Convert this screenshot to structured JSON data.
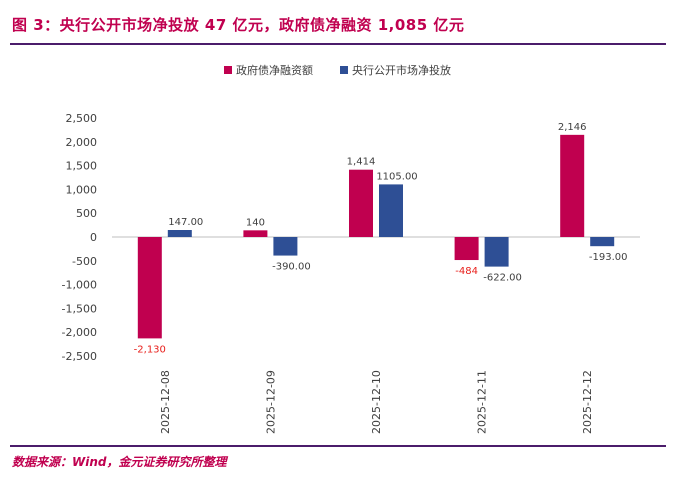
{
  "title": "图 3：央行公开市场净投放 47 亿元，政府债净融资 1,085 亿元",
  "source": "数据来源：Wind，金元证券研究所整理",
  "colors": {
    "series1": "#c0004f",
    "series2": "#2e4f95",
    "accent": "#c0004f",
    "rule": "#4b1c6b"
  },
  "chart_data": {
    "type": "bar",
    "categories": [
      "2025-12-08",
      "2025-12-09",
      "2025-12-10",
      "2025-12-11",
      "2025-12-12"
    ],
    "series": [
      {
        "name": "政府债净融资额",
        "values": [
          -2130,
          140,
          1414,
          -484,
          2146
        ],
        "labels": [
          "-2,130",
          "140",
          "1,414",
          "-484",
          "2,146"
        ]
      },
      {
        "name": "央行公开市场净投放",
        "values": [
          147,
          -390,
          1105,
          -622,
          -193
        ],
        "labels": [
          "147.00",
          "-390.00",
          "1105.00",
          "-622.00",
          "-193.00"
        ]
      }
    ],
    "yticks": [
      "2,500",
      "2,000",
      "1,500",
      "1,000",
      "500",
      "0",
      "-500",
      "-1,000",
      "-1,500",
      "-2,000",
      "-2,500"
    ],
    "ylim": [
      -2500,
      2500
    ],
    "legend_position": "top-center",
    "grid": false
  }
}
